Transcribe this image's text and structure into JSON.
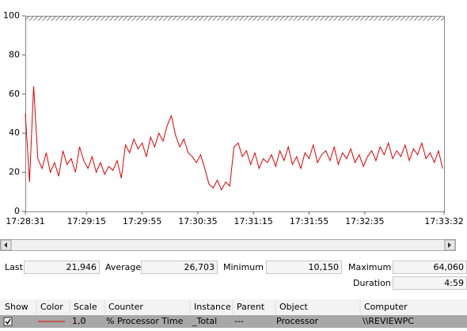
{
  "chart_data": {
    "type": "line",
    "x": [
      0,
      3,
      6,
      9,
      12,
      15,
      18,
      21,
      24,
      27,
      30,
      33,
      36,
      39,
      42,
      45,
      48,
      51,
      54,
      57,
      60,
      63,
      66,
      69,
      72,
      75,
      78,
      81,
      84,
      87,
      90,
      93,
      96,
      99,
      102,
      105,
      108,
      111,
      114,
      117,
      120,
      123,
      126,
      129,
      132,
      135,
      138,
      141,
      144,
      147,
      150,
      153,
      156,
      159,
      162,
      165,
      168,
      171,
      174,
      177,
      180,
      183,
      186,
      189,
      192,
      195,
      198,
      201,
      204,
      207,
      210,
      213,
      216,
      219,
      222,
      225,
      228,
      231,
      234,
      237,
      240,
      243,
      246,
      249,
      252,
      255,
      258,
      261,
      264,
      267,
      270,
      273,
      276,
      279,
      282,
      285,
      288,
      291,
      294,
      297,
      300
    ],
    "series": [
      {
        "name": "% Processor Time",
        "color": "#e00000",
        "values": [
          50,
          15,
          64,
          27,
          22,
          30,
          20,
          25,
          18,
          31,
          24,
          27,
          20,
          33,
          26,
          22,
          28,
          20,
          25,
          19,
          23,
          21,
          26,
          17,
          34,
          30,
          37,
          32,
          35,
          28,
          38,
          33,
          40,
          36,
          44,
          49,
          39,
          33,
          37,
          30,
          28,
          25,
          29,
          22,
          14,
          12,
          16,
          11,
          15,
          13,
          33,
          35,
          28,
          31,
          24,
          30,
          22,
          27,
          25,
          29,
          23,
          31,
          26,
          33,
          24,
          28,
          22,
          30,
          27,
          34,
          25,
          29,
          31,
          26,
          33,
          24,
          30,
          27,
          32,
          25,
          29,
          23,
          28,
          31,
          26,
          33,
          29,
          35,
          27,
          31,
          28,
          34,
          26,
          32,
          29,
          35,
          27,
          30,
          25,
          31,
          22
        ]
      }
    ],
    "xlim": [
      0,
      301
    ],
    "xticks": [
      {
        "value": 0,
        "label": "17:28:31"
      },
      {
        "value": 44,
        "label": "17:29:15"
      },
      {
        "value": 84,
        "label": "17:29:55"
      },
      {
        "value": 124,
        "label": "17:30:35"
      },
      {
        "value": 164,
        "label": "17:31:15"
      },
      {
        "value": 204,
        "label": "17:31:55"
      },
      {
        "value": 244,
        "label": "17:32:35"
      },
      {
        "value": 301,
        "label": "17:33:32"
      }
    ],
    "ylim": [
      0,
      100
    ],
    "yticks": [
      0,
      20,
      40,
      60,
      80,
      100
    ],
    "grid": false
  },
  "stats": [
    {
      "label": "Last",
      "value": "21,946"
    },
    {
      "label": "Average",
      "value": "26,703"
    },
    {
      "label": "Minimum",
      "value": "10,150"
    },
    {
      "label": "Maximum",
      "value": "64,060"
    },
    {
      "label": "Duration",
      "value": "4:59"
    }
  ],
  "counter_table": {
    "headers": [
      "Show",
      "Color",
      "Scale",
      "Counter",
      "Instance",
      "Parent",
      "Object",
      "Computer"
    ],
    "rows": [
      {
        "scale": "1,0",
        "instance": "_Total",
        "parent": "---",
        "object": "Processor",
        "computer": "\\\\REVIEWPC"
      }
    ]
  }
}
